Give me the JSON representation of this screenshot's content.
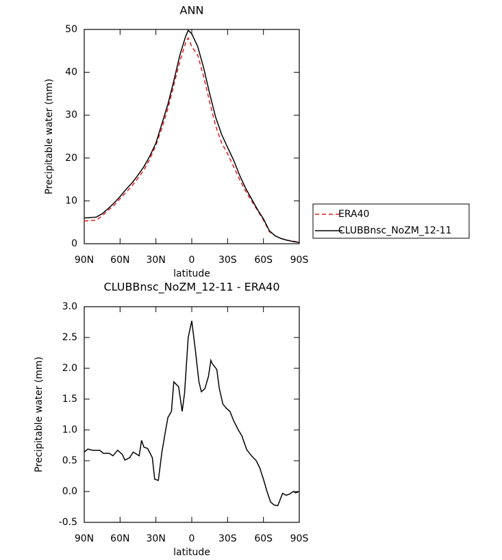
{
  "chart_data": [
    {
      "type": "line",
      "title": "ANN",
      "x_label": "latitude",
      "y_label": "Precipitable water (mm)",
      "x": [
        90,
        85,
        80,
        75,
        70,
        65,
        60,
        55,
        50,
        45,
        40,
        35,
        30,
        25,
        20,
        15,
        10,
        5,
        3,
        0,
        -5,
        -10,
        -15,
        -20,
        -25,
        -30,
        -35,
        -40,
        -45,
        -50,
        -55,
        -60,
        -65,
        -70,
        -75,
        -80,
        -85,
        -90
      ],
      "series": [
        {
          "name": "ERA40",
          "color": "#e31a1c",
          "dashed": true,
          "values": [
            5.3,
            5.4,
            5.5,
            6.5,
            7.8,
            9,
            10.5,
            12,
            13.5,
            15.3,
            17.2,
            19.8,
            23,
            27,
            31.5,
            37,
            42.5,
            47,
            48,
            46,
            44,
            39,
            33,
            27.5,
            23.5,
            21,
            18,
            15,
            12.3,
            10,
            7.8,
            5.5,
            2.8,
            1.8,
            1.2,
            0.8,
            0.6,
            0.3
          ]
        },
        {
          "name": "CLUBBnsc_NoZM_12-11",
          "color": "#000000",
          "dashed": false,
          "values": [
            6,
            6.1,
            6.2,
            7,
            8.2,
            9.5,
            11,
            12.7,
            14.2,
            16,
            18,
            20.5,
            23.5,
            28,
            32.5,
            38,
            44,
            48.5,
            49.8,
            49,
            46,
            41,
            35,
            29.5,
            25.5,
            22.5,
            19.5,
            16,
            13,
            10.5,
            8,
            5.8,
            3,
            1.8,
            1.2,
            0.8,
            0.5,
            0.3
          ]
        }
      ],
      "xlim": [
        90,
        -90
      ],
      "xticks": [
        {
          "value": 90,
          "label": "90N"
        },
        {
          "value": 60,
          "label": "60N"
        },
        {
          "value": 30,
          "label": "30N"
        },
        0,
        {
          "value": -30,
          "label": "30S"
        },
        {
          "value": -60,
          "label": "60S"
        },
        {
          "value": -90,
          "label": "90S"
        }
      ],
      "ylim": [
        0,
        50
      ],
      "yticks": [
        0,
        10,
        20,
        30,
        40,
        50
      ],
      "legend": "right"
    },
    {
      "type": "line",
      "title": "CLUBBnsc_NoZM_12-11 - ERA40",
      "x_label": "latitude",
      "y_label": "Precipitable water (mm)",
      "x": [
        90,
        87,
        83,
        77,
        74,
        69,
        66,
        62,
        58,
        56,
        52,
        49,
        44,
        42,
        40,
        37,
        33,
        31,
        28,
        25,
        23,
        20,
        17,
        15,
        11,
        8,
        6,
        3,
        0,
        -3,
        -6,
        -8,
        -11,
        -14,
        -16,
        -17,
        -21,
        -23,
        -26,
        -29,
        -32,
        -35,
        -39,
        -42,
        -46,
        -50,
        -54,
        -57,
        -60,
        -63,
        -66,
        -69,
        -72,
        -76,
        -79,
        -82,
        -85,
        -87,
        -90
      ],
      "values": [
        0.64,
        0.69,
        0.67,
        0.67,
        0.62,
        0.62,
        0.58,
        0.67,
        0.6,
        0.51,
        0.55,
        0.64,
        0.58,
        0.83,
        0.72,
        0.7,
        0.55,
        0.2,
        0.18,
        0.64,
        0.87,
        1.2,
        1.3,
        1.78,
        1.7,
        1.3,
        1.6,
        2.5,
        2.77,
        2.3,
        1.78,
        1.62,
        1.67,
        1.87,
        2.13,
        2.08,
        1.98,
        1.68,
        1.42,
        1.35,
        1.3,
        1.15,
        1.0,
        0.9,
        0.68,
        0.58,
        0.5,
        0.38,
        0.2,
        0.0,
        -0.17,
        -0.22,
        -0.23,
        -0.03,
        -0.06,
        -0.04,
        0.0,
        -0.02,
        0.0
      ],
      "color": "#000000",
      "xlim": [
        90,
        -90
      ],
      "xticks": [
        {
          "value": 90,
          "label": "90N"
        },
        {
          "value": 60,
          "label": "60N"
        },
        {
          "value": 30,
          "label": "30N"
        },
        0,
        {
          "value": -30,
          "label": "30S"
        },
        {
          "value": -60,
          "label": "60S"
        },
        {
          "value": -90,
          "label": "90S"
        }
      ],
      "ylim": [
        -0.5,
        3.0
      ],
      "yticks": [
        -0.5,
        {
          "value": 0,
          "label": "0.0"
        },
        0.5,
        {
          "value": 1,
          "label": "1.0"
        },
        1.5,
        {
          "value": 2,
          "label": "2.0"
        },
        2.5,
        {
          "value": 3,
          "label": "3.0"
        }
      ]
    }
  ]
}
